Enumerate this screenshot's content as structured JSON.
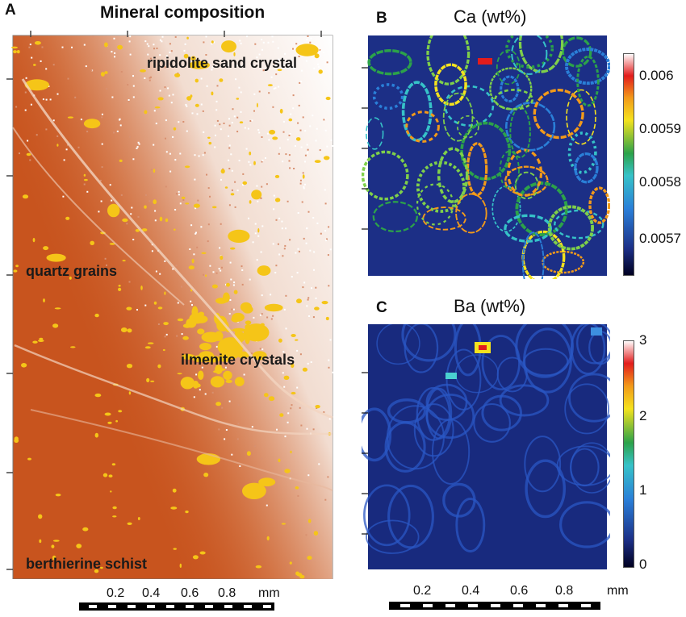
{
  "figure": {
    "panel_a": {
      "letter": "A",
      "title": "Mineral composition",
      "labels": [
        "ripidolite sand crystal",
        "quartz grains",
        "ilmenite crystals",
        "berthierine schist"
      ],
      "scalebar": {
        "ticks": [
          "0.2",
          "0.4",
          "0.6",
          "0.8"
        ],
        "unit": "mm"
      }
    },
    "panel_b": {
      "letter": "B",
      "title": "Ca (wt%)",
      "colorbar": {
        "min": 0.00565,
        "max": 0.00602,
        "ticks": [
          "0.006",
          "0.0059",
          "0.0058",
          "0.0057"
        ]
      }
    },
    "panel_c": {
      "letter": "C",
      "title": "Ba (wt%)",
      "colorbar": {
        "min": 0,
        "max": 3,
        "ticks": [
          "3",
          "2",
          "1",
          "0"
        ]
      },
      "scalebar": {
        "ticks": [
          "0.2",
          "0.4",
          "0.6",
          "0.8"
        ],
        "unit": "mm"
      }
    },
    "colors": {
      "matrix_orange": "#c8541e",
      "ilmenite_yellow": "#f5c518",
      "quartz_white": "#ffffff",
      "map_background_blue": "#1c2f86",
      "vein_blue": "#2a57c4"
    }
  }
}
